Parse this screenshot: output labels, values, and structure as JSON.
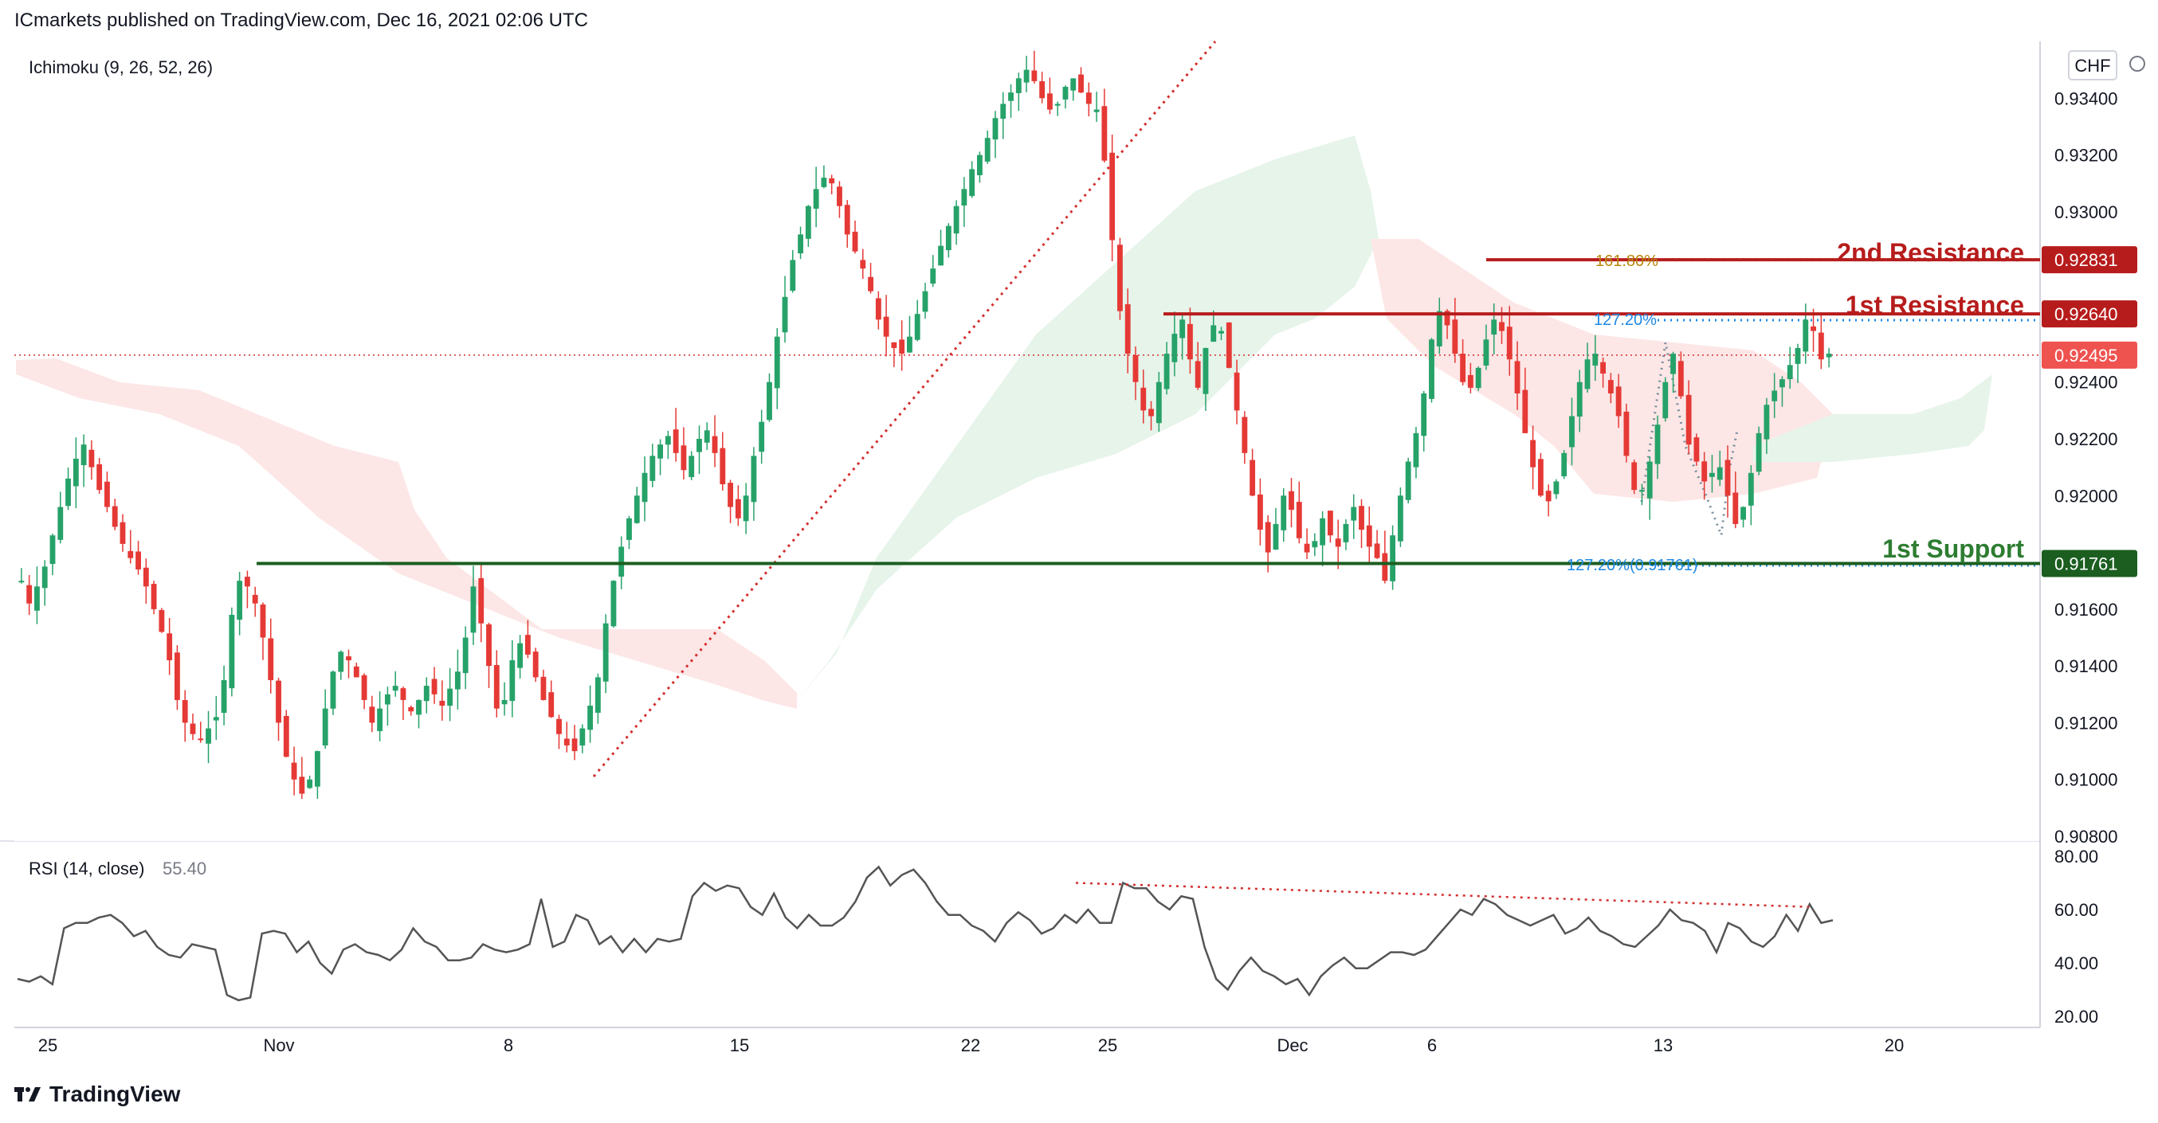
{
  "header": {
    "publisher_line": "ICmarkets published on TradingView.com, Dec 16, 2021 02:06 UTC",
    "indicator_label": "Ichimoku (9, 26, 52, 26)",
    "currency": "CHF"
  },
  "footer": {
    "brand": "TradingView"
  },
  "annotations": {
    "resistance2_label": "2nd Resistance",
    "resistance1_label": "1st Resistance",
    "support1_label": "1st Support",
    "fib_161": "161.80%",
    "fib_127_top": "127.20%",
    "fib_127_bottom": "127.20%(0.91761)"
  },
  "colors": {
    "up": "#26a269",
    "down": "#e53935",
    "resistance": "#b71c1c",
    "support": "#1b5e20",
    "fib_gold": "#b8860b",
    "fib_blue": "#1e88e5",
    "cloud_bear": "#fde6e6",
    "cloud_bull": "#e6f4ea",
    "rsi_line": "#555555",
    "trendline": "#d32f2f"
  },
  "chart_data": [
    {
      "type": "candlestick",
      "symbol_currency": "CHF",
      "indicator": "Ichimoku (9, 26, 52, 26)",
      "y_ticks": [
        "0.93400",
        "0.93200",
        "0.93000",
        "0.92400",
        "0.92200",
        "0.92000",
        "0.91600",
        "0.91400",
        "0.91200",
        "0.91000",
        "0.90800"
      ],
      "x_ticks": [
        "25",
        "Nov",
        "8",
        "15",
        "22",
        "25",
        "Dec",
        "6",
        "13",
        "20"
      ],
      "ylim": [
        0.908,
        0.936
      ],
      "price_labels": [
        {
          "value": "0.92831",
          "kind": "2nd Resistance"
        },
        {
          "value": "0.92640",
          "kind": "1st Resistance"
        },
        {
          "value": "0.92495",
          "kind": "Last price"
        },
        {
          "value": "0.91761",
          "kind": "1st Support"
        }
      ],
      "levels": {
        "resistance2": 0.92831,
        "resistance1": 0.9264,
        "last": 0.92495,
        "support1": 0.91761
      },
      "close_path": [
        0.917,
        0.9162,
        0.9168,
        0.9175,
        0.9186,
        0.9196,
        0.9206,
        0.9213,
        0.9218,
        0.921,
        0.9202,
        0.9196,
        0.9189,
        0.9183,
        0.9178,
        0.9174,
        0.9168,
        0.916,
        0.9152,
        0.9142,
        0.9128,
        0.912,
        0.9116,
        0.9114,
        0.9118,
        0.9122,
        0.9135,
        0.9158,
        0.917,
        0.9168,
        0.9162,
        0.915,
        0.9135,
        0.912,
        0.9108,
        0.91,
        0.9095,
        0.91,
        0.911,
        0.9125,
        0.9138,
        0.9145,
        0.9142,
        0.9136,
        0.9128,
        0.912,
        0.9125,
        0.913,
        0.9133,
        0.9128,
        0.9124,
        0.9128,
        0.9133,
        0.913,
        0.9126,
        0.9132,
        0.9138,
        0.915,
        0.9168,
        0.9155,
        0.914,
        0.9125,
        0.9128,
        0.9142,
        0.9148,
        0.9144,
        0.9136,
        0.9128,
        0.9122,
        0.9116,
        0.9112,
        0.911,
        0.9118,
        0.9126,
        0.9136,
        0.9155,
        0.917,
        0.9182,
        0.9192,
        0.92,
        0.9208,
        0.9214,
        0.9218,
        0.9221,
        0.9215,
        0.9209,
        0.9214,
        0.922,
        0.9223,
        0.9215,
        0.9204,
        0.9196,
        0.9192,
        0.92,
        0.9214,
        0.9226,
        0.924,
        0.9256,
        0.927,
        0.9283,
        0.9292,
        0.9302,
        0.9308,
        0.9312,
        0.931,
        0.9302,
        0.9292,
        0.9286,
        0.928,
        0.9272,
        0.9262,
        0.9256,
        0.9252,
        0.925,
        0.9256,
        0.9264,
        0.9272,
        0.928,
        0.9288,
        0.9295,
        0.9302,
        0.9308,
        0.9315,
        0.932,
        0.9326,
        0.9333,
        0.9338,
        0.9342,
        0.9347,
        0.935,
        0.9346,
        0.934,
        0.9336,
        0.9338,
        0.9344,
        0.9347,
        0.9342,
        0.9338,
        0.9336,
        0.9318,
        0.929,
        0.9265,
        0.925,
        0.924,
        0.923,
        0.9228,
        0.924,
        0.925,
        0.9257,
        0.9262,
        0.9248,
        0.9238,
        0.9252,
        0.926,
        0.9258,
        0.9245,
        0.923,
        0.9215,
        0.92,
        0.9188,
        0.918,
        0.919,
        0.92,
        0.9195,
        0.9185,
        0.918,
        0.9184,
        0.9192,
        0.9186,
        0.9182,
        0.919,
        0.9196,
        0.9188,
        0.9182,
        0.9178,
        0.917,
        0.9186,
        0.92,
        0.9212,
        0.9222,
        0.9236,
        0.9255,
        0.9265,
        0.926,
        0.925,
        0.924,
        0.9238,
        0.9245,
        0.9255,
        0.9262,
        0.9258,
        0.9248,
        0.9236,
        0.9222,
        0.921,
        0.92,
        0.9198,
        0.9205,
        0.9215,
        0.9228,
        0.924,
        0.9248,
        0.925,
        0.9243,
        0.9236,
        0.9228,
        0.9214,
        0.9202,
        0.9202,
        0.9212,
        0.9225,
        0.924,
        0.925,
        0.9235,
        0.9218,
        0.9212,
        0.9205,
        0.9208,
        0.921,
        0.92,
        0.919,
        0.9196,
        0.9208,
        0.9222,
        0.9232,
        0.9237,
        0.9241,
        0.9246,
        0.9252,
        0.9262,
        0.9258,
        0.9248,
        0.925
      ],
      "rsi": {
        "label": "RSI (14, close)",
        "value": "55.40",
        "y_ticks": [
          "80.00",
          "60.00",
          "40.00",
          "20.00"
        ],
        "ylim": [
          20,
          80
        ],
        "path": [
          34,
          33,
          35,
          32,
          53,
          55,
          55,
          57,
          58,
          55,
          50,
          52,
          46,
          43,
          42,
          47,
          46,
          45,
          28,
          26,
          27,
          51,
          52,
          51,
          44,
          48,
          40,
          36,
          45,
          47,
          44,
          43,
          41,
          45,
          53,
          48,
          46,
          41,
          41,
          42,
          47,
          45,
          44,
          45,
          47,
          64,
          46,
          48,
          58,
          56,
          47,
          50,
          44,
          49,
          44,
          49,
          48,
          49,
          65,
          70,
          67,
          69,
          68,
          61,
          58,
          66,
          57,
          53,
          58,
          54,
          54,
          57,
          63,
          72,
          76,
          69,
          73,
          75,
          70,
          63,
          58,
          58,
          54,
          52,
          48,
          55,
          59,
          56,
          51,
          53,
          58,
          55,
          60,
          55,
          55,
          70,
          68,
          68,
          63,
          60,
          65,
          64,
          46,
          34,
          30,
          37,
          42,
          37,
          35,
          32,
          34,
          28,
          35,
          39,
          42,
          38,
          38,
          41,
          44,
          44,
          43,
          45,
          50,
          55,
          60,
          58,
          64,
          62,
          58,
          56,
          54,
          56,
          58,
          51,
          53,
          57,
          52,
          50,
          47,
          46,
          50,
          54,
          60,
          56,
          55,
          52,
          44,
          55,
          53,
          48,
          46,
          50,
          58,
          52,
          62,
          55,
          56
        ]
      }
    }
  ]
}
